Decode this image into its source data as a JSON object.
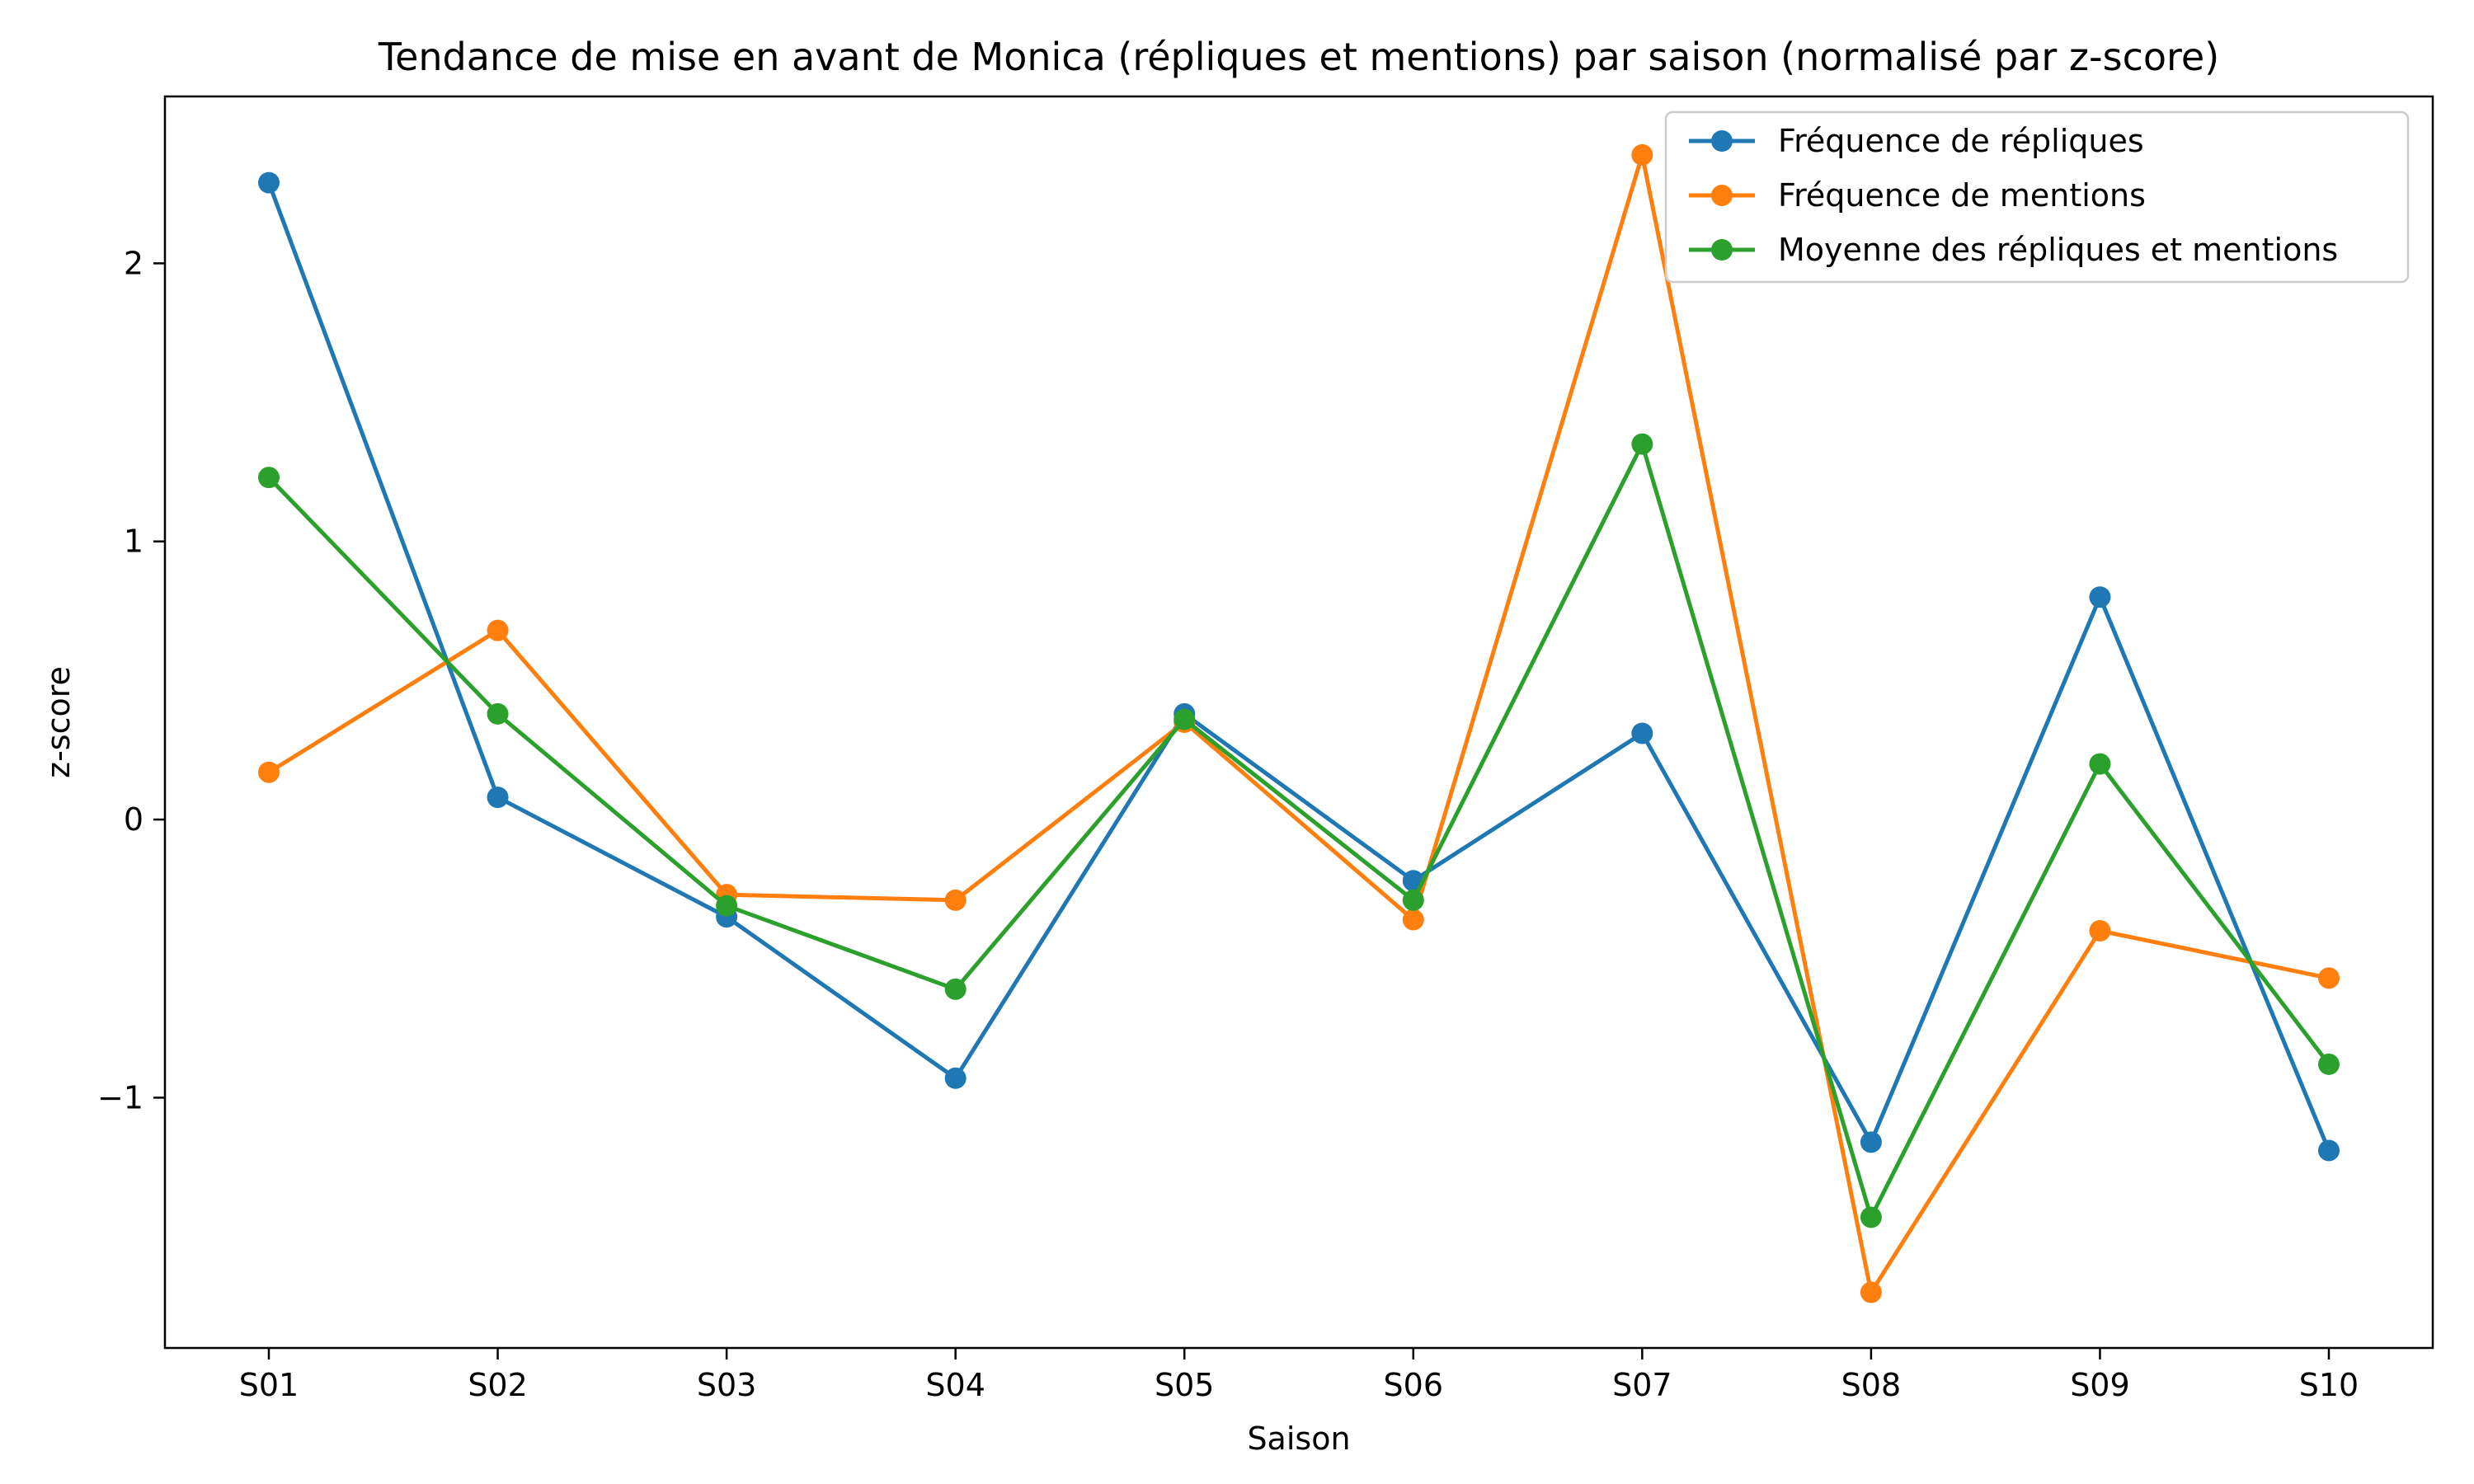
{
  "chart_data": {
    "type": "line",
    "title": "Tendance de mise en avant de Monica (répliques et mentions) par saison (normalisé par z-score)",
    "xlabel": "Saison",
    "ylabel": "z-score",
    "categories": [
      "S01",
      "S02",
      "S03",
      "S04",
      "S05",
      "S06",
      "S07",
      "S08",
      "S09",
      "S10"
    ],
    "ylim": [
      -1.9,
      2.6
    ],
    "yticks": [
      -1,
      0,
      1,
      2
    ],
    "ytick_labels": [
      "−1",
      "0",
      "1",
      "2"
    ],
    "grid": false,
    "legend_position": "top-right",
    "series": [
      {
        "name": "Fréquence de répliques",
        "color": "#1f77b4",
        "values": [
          2.29,
          0.08,
          -0.35,
          -0.93,
          0.38,
          -0.22,
          0.31,
          -1.16,
          0.8,
          -1.19
        ]
      },
      {
        "name": "Fréquence de mentions",
        "color": "#ff7f0e",
        "values": [
          0.17,
          0.68,
          -0.27,
          -0.29,
          0.35,
          -0.36,
          2.39,
          -1.7,
          -0.4,
          -0.57
        ]
      },
      {
        "name": "Moyenne des répliques et mentions",
        "color": "#2ca02c",
        "values": [
          1.23,
          0.38,
          -0.31,
          -0.61,
          0.36,
          -0.29,
          1.35,
          -1.43,
          0.2,
          -0.88
        ]
      }
    ]
  }
}
